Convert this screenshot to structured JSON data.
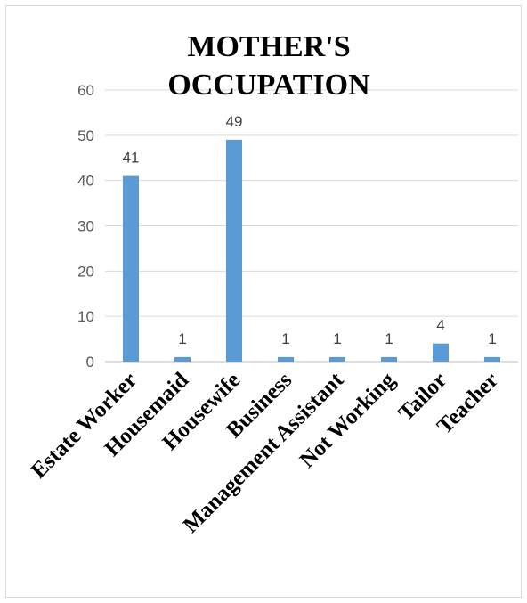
{
  "chart_data": {
    "type": "bar",
    "title_lines": [
      "MOTHER'S",
      "OCCUPATION"
    ],
    "categories": [
      "Estate Worker",
      "Housemaid",
      "Housewife",
      "Business",
      "Management Assistant",
      "Not Working",
      "Tailor",
      "Teacher"
    ],
    "values": [
      41,
      1,
      49,
      1,
      1,
      1,
      4,
      1
    ],
    "ylim": [
      0,
      60
    ],
    "yticks": [
      0,
      10,
      20,
      30,
      40,
      50,
      60
    ],
    "grid": true,
    "legend": "none",
    "colors": {
      "bar": "#5b9bd5"
    }
  }
}
